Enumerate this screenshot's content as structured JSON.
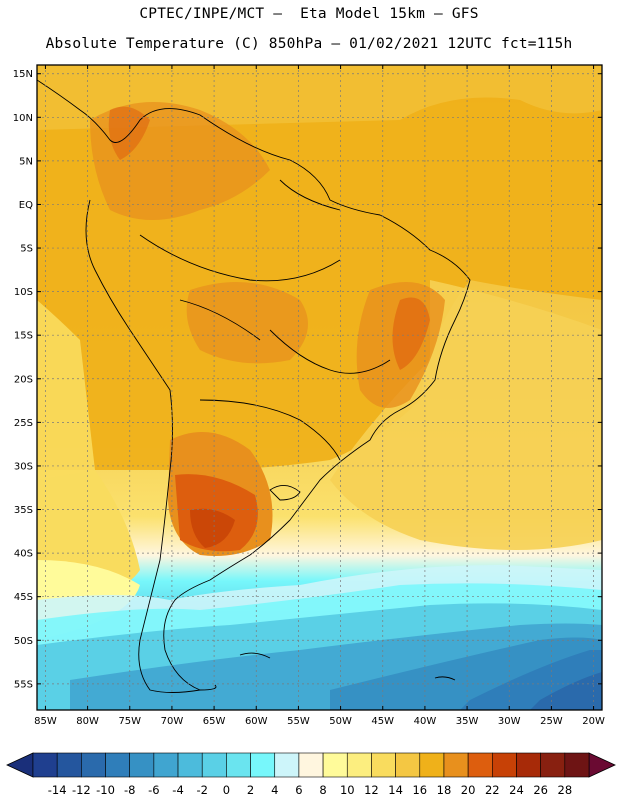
{
  "header": {
    "line1": "CPTEC/INPE/MCT –  Eta Model 15km – GFS",
    "line2": "Absolute Temperature (C) 850hPa – 01/02/2021 12UTC fct=115h"
  },
  "map": {
    "lon_range": [
      -86,
      -19
    ],
    "lat_range": [
      -58,
      16
    ],
    "lat_labels": [
      "15N",
      "10N",
      "5N",
      "EQ",
      "5S",
      "10S",
      "15S",
      "20S",
      "25S",
      "30S",
      "35S",
      "40S",
      "45S",
      "50S",
      "55S"
    ],
    "lat_values": [
      15,
      10,
      5,
      0,
      -5,
      -10,
      -15,
      -20,
      -25,
      -30,
      -35,
      -40,
      -45,
      -50,
      -55
    ],
    "lon_labels": [
      "85W",
      "80W",
      "75W",
      "70W",
      "65W",
      "60W",
      "55W",
      "50W",
      "45W",
      "40W",
      "35W",
      "30W",
      "25W",
      "20W"
    ],
    "lon_values": [
      -85,
      -80,
      -75,
      -70,
      -65,
      -60,
      -55,
      -50,
      -45,
      -40,
      -35,
      -30,
      -25,
      -20
    ],
    "grid": true,
    "field": "Absolute Temperature (C) 850hPa"
  },
  "colorbar": {
    "labels": [
      "-14",
      "-12",
      "-10",
      "-8",
      "-6",
      "-4",
      "-2",
      "0",
      "2",
      "4",
      "6",
      "8",
      "10",
      "12",
      "14",
      "16",
      "18",
      "20",
      "22",
      "24",
      "26",
      "28"
    ],
    "colors": [
      "#1f3f8f",
      "#24569e",
      "#2a6aac",
      "#2f7eba",
      "#3691c4",
      "#40a5d0",
      "#4cbbdc",
      "#5ad0e6",
      "#6ae4ef",
      "#77f7fb",
      "#cdf5fa",
      "#fff6df",
      "#fffb9a",
      "#fcee7f",
      "#f9dc5e",
      "#f4c743",
      "#efb11a",
      "#e8901d",
      "#dd5e0e",
      "#c74106",
      "#a72a08",
      "#882010",
      "#6e1414"
    ],
    "arrow_left_color": "#1a2f7a",
    "arrow_right_color": "#6a0a32"
  }
}
